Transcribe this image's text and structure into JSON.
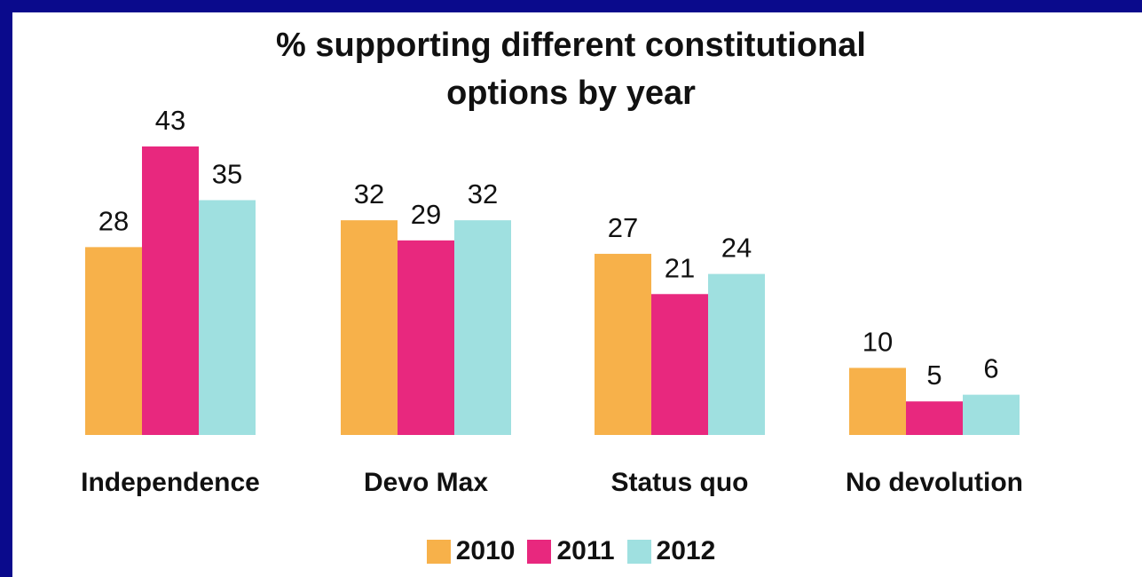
{
  "chart_data": {
    "type": "bar",
    "title": [
      "% supporting different constitutional",
      "options by year"
    ],
    "categories": [
      "Independence",
      "Devo Max",
      "Status quo",
      "No devolution"
    ],
    "series": [
      {
        "name": "2010",
        "color": "#f7b14a",
        "values": [
          28,
          32,
          27,
          10
        ]
      },
      {
        "name": "2011",
        "color": "#e8287e",
        "values": [
          43,
          29,
          21,
          5
        ]
      },
      {
        "name": "2012",
        "color": "#9fe0e0",
        "values": [
          35,
          32,
          24,
          6
        ]
      }
    ],
    "ylim": [
      0,
      43
    ],
    "grid": false,
    "legend_position": "bottom"
  }
}
